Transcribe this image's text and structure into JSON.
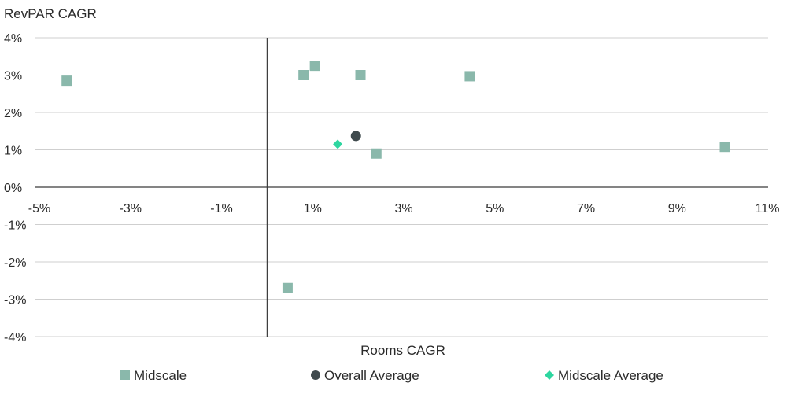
{
  "chart_data": {
    "type": "scatter",
    "ylabel": "RevPAR CAGR",
    "xlabel": "Rooms CAGR",
    "xlim": [
      -5,
      11
    ],
    "ylim": [
      -4,
      4
    ],
    "x_ticks": [
      "-5%",
      "-3%",
      "-1%",
      "1%",
      "3%",
      "5%",
      "7%",
      "9%",
      "11%"
    ],
    "y_ticks": [
      "4%",
      "3%",
      "2%",
      "1%",
      "0%",
      "-1%",
      "-2%",
      "-3%",
      "-4%"
    ],
    "grid": "horizontal",
    "legend_position": "bottom",
    "series": [
      {
        "name": "Midscale",
        "marker": "square",
        "color": "#8ab8ab",
        "points": [
          {
            "x": -4.4,
            "y": 2.85
          },
          {
            "x": 0.8,
            "y": 3.0
          },
          {
            "x": 1.05,
            "y": 3.25
          },
          {
            "x": 2.05,
            "y": 3.0
          },
          {
            "x": 4.45,
            "y": 2.97
          },
          {
            "x": 2.4,
            "y": 0.9
          },
          {
            "x": 10.05,
            "y": 1.08
          },
          {
            "x": 0.45,
            "y": -2.7
          }
        ]
      },
      {
        "name": "Overall Average",
        "marker": "circle",
        "color": "#3f4a4d",
        "points": [
          {
            "x": 1.95,
            "y": 1.37
          }
        ]
      },
      {
        "name": "Midscale Average",
        "marker": "diamond",
        "color": "#2ed6a0",
        "points": [
          {
            "x": 1.55,
            "y": 1.15
          }
        ]
      }
    ]
  }
}
